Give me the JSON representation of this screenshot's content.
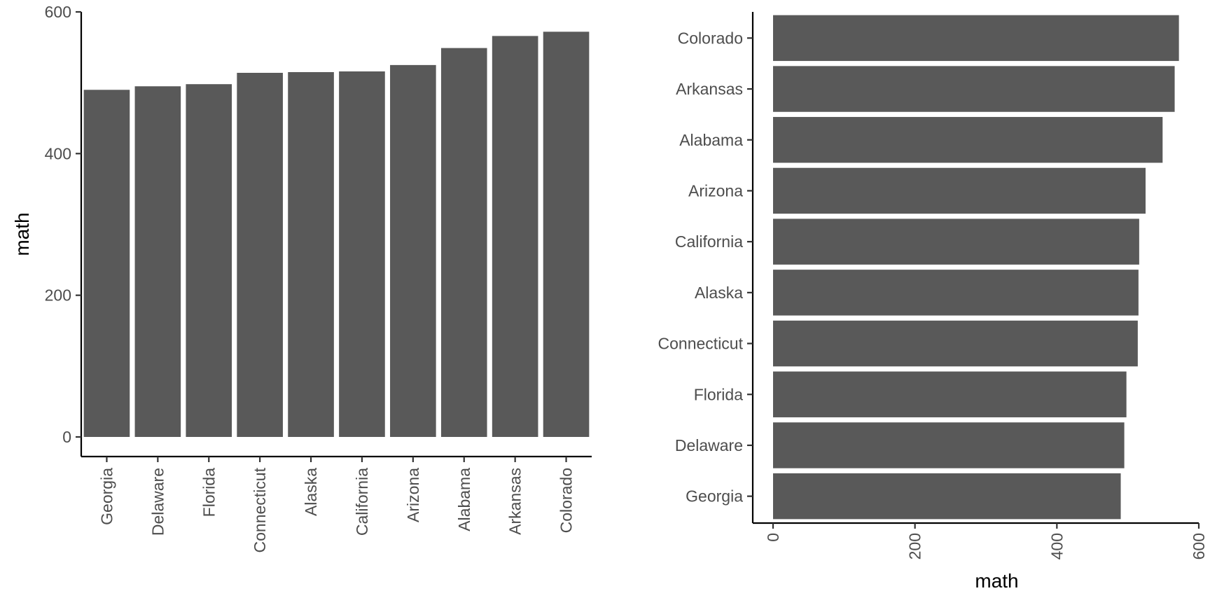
{
  "colors": {
    "bar": "#595959",
    "axis": "#000000",
    "tick_label": "#4d4d4d",
    "background": "#ffffff"
  },
  "chart_data": [
    {
      "type": "bar",
      "orientation": "vertical",
      "categories": [
        "Georgia",
        "Delaware",
        "Florida",
        "Connecticut",
        "Alaska",
        "California",
        "Arizona",
        "Alabama",
        "Arkansas",
        "Colorado"
      ],
      "values": [
        490,
        495,
        498,
        514,
        515,
        516,
        525,
        549,
        566,
        572
      ],
      "xlabel": "",
      "ylabel": "math",
      "ylim": [
        0,
        600
      ],
      "yticks": [
        0,
        200,
        400,
        600
      ],
      "grid": false
    },
    {
      "type": "bar",
      "orientation": "horizontal",
      "categories": [
        "Colorado",
        "Arkansas",
        "Alabama",
        "Arizona",
        "California",
        "Alaska",
        "Connecticut",
        "Florida",
        "Delaware",
        "Georgia"
      ],
      "values": [
        572,
        566,
        549,
        525,
        516,
        515,
        514,
        498,
        495,
        490
      ],
      "xlabel": "math",
      "ylabel": "",
      "xlim": [
        0,
        600
      ],
      "xticks": [
        0,
        200,
        400,
        600
      ],
      "grid": false
    }
  ]
}
